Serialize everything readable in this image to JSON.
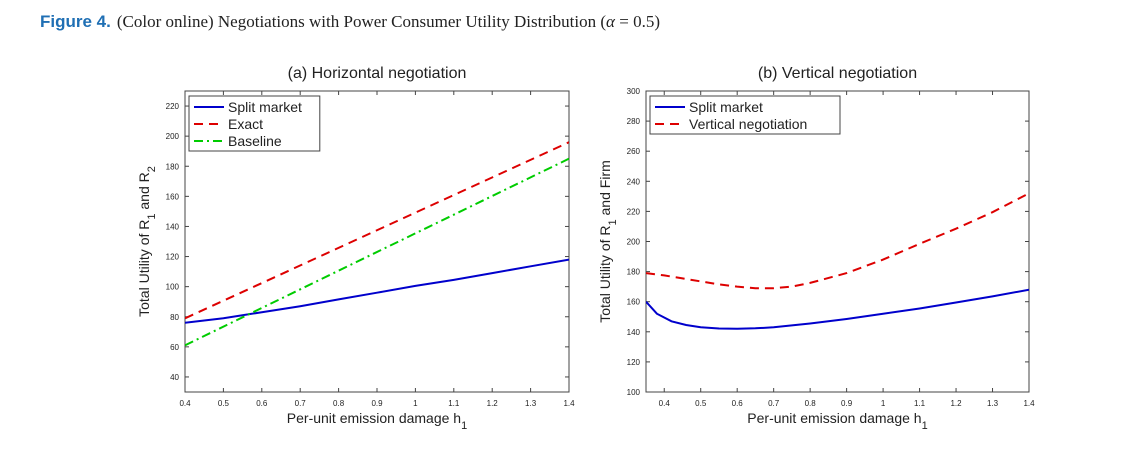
{
  "caption": {
    "label": "Figure 4.",
    "text_before": "(Color online) Negotiations with Power Consumer Utility Distribution (",
    "symbol": "α",
    "text_after": " = 0.5)"
  },
  "chart_data": [
    {
      "type": "line",
      "title": "(a) Horizontal negotiation",
      "xlabel": "Per-unit emission damage h",
      "xlabel_sub": "1",
      "ylabel_parts": [
        "Total Utility of R",
        "1",
        " and R",
        "2"
      ],
      "xlim": [
        0.4,
        1.4
      ],
      "ylim": [
        30,
        230
      ],
      "xticks": [
        0.4,
        0.5,
        0.6,
        0.7,
        0.8,
        0.9,
        1,
        1.1,
        1.2,
        1.3,
        1.4
      ],
      "xtick_labels": [
        "0.4",
        "0.5",
        "0.6",
        "0.7",
        "0.8",
        "0.9",
        "1",
        "1.1",
        "1.2",
        "1.3",
        "1.4"
      ],
      "yticks": [
        40,
        60,
        80,
        100,
        120,
        140,
        160,
        180,
        200,
        220
      ],
      "ytick_labels": [
        "40",
        "60",
        "80",
        "100",
        "120",
        "140",
        "160",
        "180",
        "200",
        "220"
      ],
      "grid": false,
      "legend_position": "top-left",
      "series": [
        {
          "name": "Split market",
          "color": "#0000cc",
          "dash": "solid",
          "x": [
            0.4,
            0.5,
            0.6,
            0.7,
            0.8,
            0.9,
            1.0,
            1.1,
            1.2,
            1.3,
            1.4
          ],
          "y": [
            76,
            79,
            83,
            87,
            91.5,
            96,
            100.5,
            104.5,
            109,
            113.5,
            118
          ]
        },
        {
          "name": "Exact",
          "color": "#dd0000",
          "dash": "dashed",
          "x": [
            0.4,
            1.4
          ],
          "y": [
            79,
            196
          ]
        },
        {
          "name": "Baseline",
          "color": "#00cc00",
          "dash": "dashdot",
          "x": [
            0.4,
            1.4
          ],
          "y": [
            61,
            185
          ]
        }
      ]
    },
    {
      "type": "line",
      "title": "(b) Vertical negotiation",
      "xlabel": "Per-unit emission damage h",
      "xlabel_sub": "1",
      "ylabel_parts": [
        "Total Utility of R",
        "1",
        " and Firm",
        ""
      ],
      "xlim": [
        0.35,
        1.4
      ],
      "ylim": [
        100,
        300
      ],
      "xticks": [
        0.4,
        0.5,
        0.6,
        0.7,
        0.8,
        0.9,
        1,
        1.1,
        1.2,
        1.3,
        1.4
      ],
      "xtick_labels": [
        "0.4",
        "0.5",
        "0.6",
        "0.7",
        "0.8",
        "0.9",
        "1",
        "1.1",
        "1.2",
        "1.3",
        "1.4"
      ],
      "yticks": [
        100,
        120,
        140,
        160,
        180,
        200,
        220,
        240,
        260,
        280,
        300
      ],
      "ytick_labels": [
        "100",
        "120",
        "140",
        "160",
        "180",
        "200",
        "220",
        "240",
        "260",
        "280",
        "300"
      ],
      "grid": false,
      "legend_position": "top-left",
      "series": [
        {
          "name": "Split market",
          "color": "#0000cc",
          "dash": "solid",
          "x": [
            0.35,
            0.38,
            0.42,
            0.46,
            0.5,
            0.55,
            0.6,
            0.65,
            0.7,
            0.8,
            0.9,
            1.0,
            1.1,
            1.2,
            1.3,
            1.4
          ],
          "y": [
            160,
            152,
            147,
            144.5,
            143,
            142.2,
            142,
            142.3,
            143,
            145.5,
            148.5,
            152,
            155.5,
            159.5,
            163.5,
            168
          ]
        },
        {
          "name": "Vertical negotiation",
          "color": "#dd0000",
          "dash": "dashed",
          "x": [
            0.35,
            0.4,
            0.45,
            0.5,
            0.55,
            0.6,
            0.65,
            0.7,
            0.75,
            0.8,
            0.9,
            1.0,
            1.1,
            1.2,
            1.3,
            1.4
          ],
          "y": [
            179,
            177.5,
            175.5,
            173.5,
            171.5,
            170,
            169,
            169,
            170,
            172.5,
            179,
            188,
            198.5,
            208.5,
            219.5,
            232
          ]
        }
      ]
    }
  ]
}
